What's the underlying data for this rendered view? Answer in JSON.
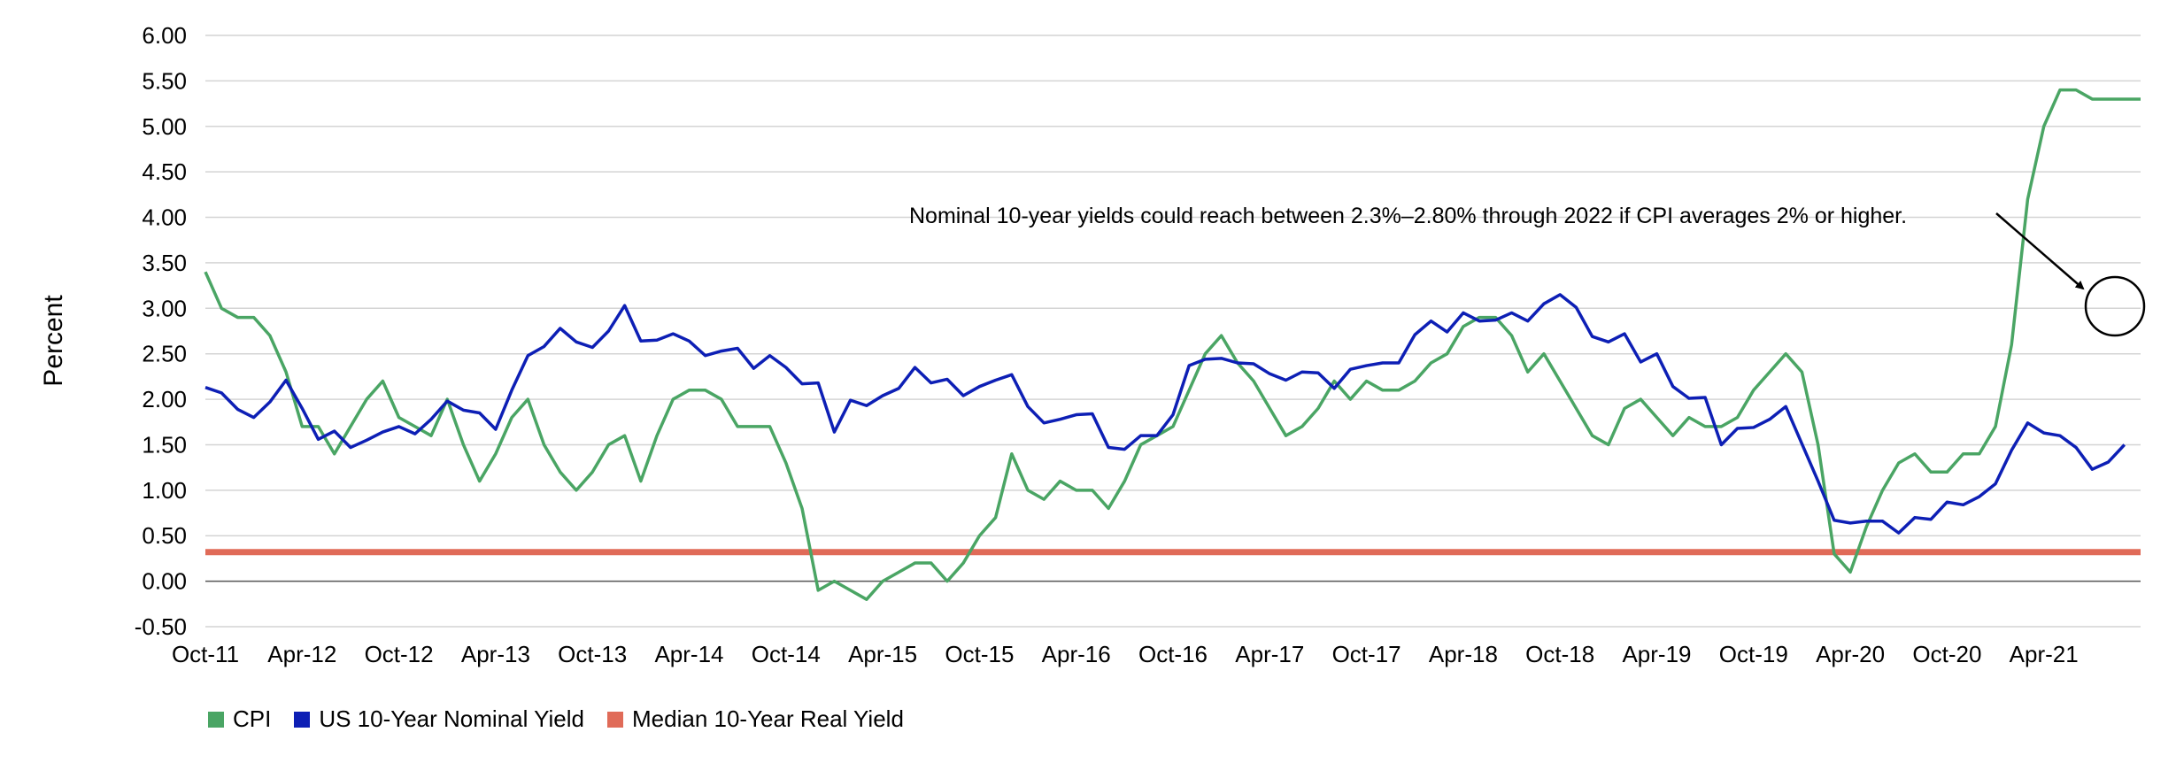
{
  "chart_data": {
    "type": "line",
    "ylabel": "Percent",
    "ylim": [
      -0.5,
      6.0
    ],
    "yticks": [
      "6.00",
      "5.50",
      "5.00",
      "4.50",
      "4.00",
      "3.50",
      "3.00",
      "2.50",
      "2.00",
      "1.50",
      "1.00",
      "0.50",
      "0.00",
      "-0.50"
    ],
    "x_start": "Oct-11",
    "x_step": "monthly",
    "xtick_labels": [
      "Oct-11",
      "Apr-12",
      "Oct-12",
      "Apr-13",
      "Oct-13",
      "Apr-14",
      "Oct-14",
      "Apr-15",
      "Oct-15",
      "Apr-16",
      "Oct-16",
      "Apr-17",
      "Oct-17",
      "Apr-18",
      "Oct-18",
      "Apr-19",
      "Oct-19",
      "Apr-20",
      "Oct-20",
      "Apr-21"
    ],
    "series": [
      {
        "name": "CPI",
        "color": "#4aa564",
        "values": [
          3.4,
          3.0,
          2.9,
          2.9,
          2.7,
          2.3,
          1.7,
          1.7,
          1.4,
          1.7,
          2.0,
          2.2,
          1.8,
          1.7,
          1.6,
          2.0,
          1.5,
          1.1,
          1.4,
          1.8,
          2.0,
          1.5,
          1.2,
          1.0,
          1.2,
          1.5,
          1.6,
          1.1,
          1.6,
          2.0,
          2.1,
          2.1,
          2.0,
          1.7,
          1.7,
          1.7,
          1.3,
          0.8,
          -0.1,
          0.0,
          -0.1,
          -0.2,
          0.0,
          0.1,
          0.2,
          0.2,
          0.0,
          0.2,
          0.5,
          0.7,
          1.4,
          1.0,
          0.9,
          1.1,
          1.0,
          1.0,
          0.8,
          1.1,
          1.5,
          1.6,
          1.7,
          2.1,
          2.5,
          2.7,
          2.4,
          2.2,
          1.9,
          1.6,
          1.7,
          1.9,
          2.2,
          2.0,
          2.2,
          2.1,
          2.1,
          2.2,
          2.4,
          2.5,
          2.8,
          2.9,
          2.9,
          2.7,
          2.3,
          2.5,
          2.2,
          1.9,
          1.6,
          1.5,
          1.9,
          2.0,
          1.8,
          1.6,
          1.8,
          1.7,
          1.7,
          1.8,
          2.1,
          2.3,
          2.5,
          2.3,
          1.5,
          0.3,
          0.1,
          0.6,
          1.0,
          1.3,
          1.4,
          1.2,
          1.2,
          1.4,
          1.4,
          1.7,
          2.6,
          4.2,
          5.0,
          5.4,
          5.4,
          5.3,
          5.3,
          5.3,
          5.3
        ],
        "width": 3.5
      },
      {
        "name": "US 10-Year Nominal Yield",
        "color": "#0d1fb5",
        "values": [
          2.13,
          2.07,
          1.89,
          1.8,
          1.97,
          2.21,
          1.9,
          1.56,
          1.65,
          1.47,
          1.55,
          1.64,
          1.7,
          1.62,
          1.78,
          1.98,
          1.88,
          1.85,
          1.67,
          2.1,
          2.48,
          2.58,
          2.78,
          2.63,
          2.57,
          2.75,
          3.03,
          2.64,
          2.65,
          2.72,
          2.64,
          2.48,
          2.53,
          2.56,
          2.34,
          2.48,
          2.35,
          2.17,
          2.18,
          1.64,
          1.99,
          1.93,
          2.04,
          2.12,
          2.35,
          2.18,
          2.22,
          2.04,
          2.14,
          2.21,
          2.27,
          1.92,
          1.74,
          1.78,
          1.83,
          1.84,
          1.47,
          1.45,
          1.6,
          1.6,
          1.83,
          2.37,
          2.44,
          2.45,
          2.4,
          2.39,
          2.28,
          2.21,
          2.3,
          2.29,
          2.12,
          2.33,
          2.37,
          2.4,
          2.4,
          2.71,
          2.86,
          2.74,
          2.95,
          2.86,
          2.87,
          2.95,
          2.86,
          3.05,
          3.15,
          3.01,
          2.69,
          2.63,
          2.72,
          2.41,
          2.5,
          2.14,
          2.01,
          2.02,
          1.5,
          1.68,
          1.69,
          1.78,
          1.92,
          1.51,
          1.1,
          0.67,
          0.64,
          0.66,
          0.66,
          0.53,
          0.7,
          0.68,
          0.87,
          0.84,
          0.93,
          1.07,
          1.44,
          1.74,
          1.63,
          1.6,
          1.47,
          1.23,
          1.31,
          1.5
        ],
        "width": 3.5
      },
      {
        "name": "Median 10-Year Real Yield",
        "color": "#e06b58",
        "constant": 0.32,
        "width": 7
      }
    ],
    "annotation": {
      "text": "Nominal 10-year yields could reach between 2.3%–2.80% through 2022 if CPI averages 2% or higher.",
      "target_range": [
        2.3,
        2.8
      ]
    }
  }
}
